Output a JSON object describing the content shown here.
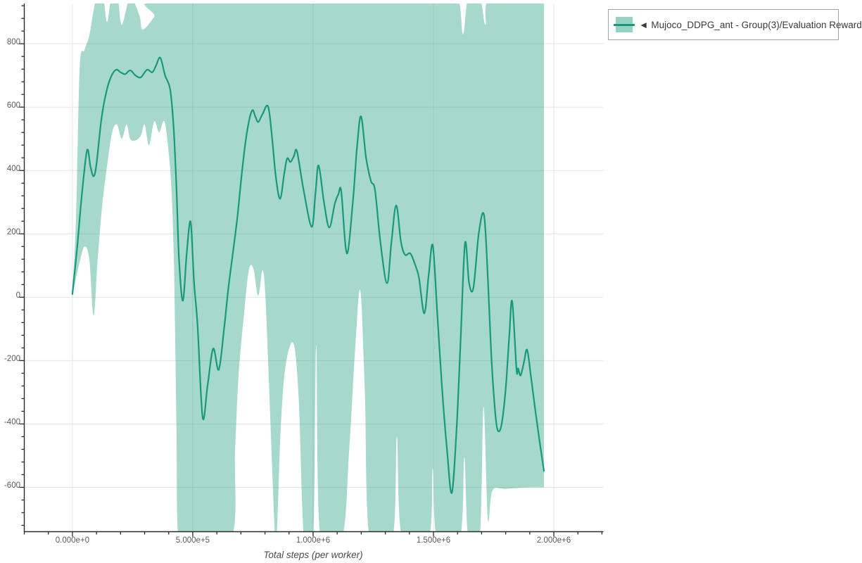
{
  "colors": {
    "line": "#17997a",
    "band_fill": "#17997a",
    "band_opacity": 0.38,
    "grid": "#e4e4e4",
    "axis": "#2b2b2b",
    "tick_text": "#5a5a5a"
  },
  "legend": {
    "collapse_icon": "◄",
    "label": "Mujoco_DDPG_ant - Group(3)/Evaluation Reward"
  },
  "x_axis": {
    "label": "Total steps (per worker)",
    "tick_labels": [
      "0.000e+0",
      "5.000e+5",
      "1.000e+6",
      "1.500e+6",
      "2.000e+6"
    ],
    "tick_values": [
      0,
      500000,
      1000000,
      1500000,
      2000000
    ],
    "minor_step": 100000,
    "range": [
      -200000,
      2206000
    ]
  },
  "y_axis": {
    "tick_labels": [
      "800",
      "600",
      "400",
      "200",
      "0",
      "-200",
      "-400",
      "-600"
    ],
    "tick_values": [
      800,
      600,
      400,
      200,
      0,
      -200,
      -400,
      -600
    ],
    "minor_step": 40,
    "range": [
      -740,
      927
    ]
  },
  "chart_data": {
    "type": "line",
    "title": "",
    "xlabel": "Total steps (per worker)",
    "ylabel": "",
    "legend_position": "top-right",
    "grid": true,
    "xlim": [
      -200000,
      2206000
    ],
    "ylim": [
      -740,
      927
    ],
    "series": [
      {
        "name": "Mujoco_DDPG_ant - Group(3)/Evaluation Reward (mean)",
        "points": [
          [
            0,
            10
          ],
          [
            20,
            160
          ],
          [
            40,
            330
          ],
          [
            61,
            464
          ],
          [
            75,
            412
          ],
          [
            88,
            382
          ],
          [
            100,
            420
          ],
          [
            120,
            560
          ],
          [
            140,
            645
          ],
          [
            160,
            695
          ],
          [
            181,
            718
          ],
          [
            200,
            710
          ],
          [
            219,
            704
          ],
          [
            240,
            716
          ],
          [
            262,
            700
          ],
          [
            284,
            694
          ],
          [
            310,
            718
          ],
          [
            332,
            710
          ],
          [
            348,
            732
          ],
          [
            365,
            756
          ],
          [
            385,
            700
          ],
          [
            406,
            656
          ],
          [
            420,
            540
          ],
          [
            432,
            350
          ],
          [
            443,
            120
          ],
          [
            459,
            -11
          ],
          [
            475,
            140
          ],
          [
            491,
            238
          ],
          [
            505,
            50
          ],
          [
            520,
            -90
          ],
          [
            541,
            -380
          ],
          [
            562,
            -275
          ],
          [
            585,
            -162
          ],
          [
            608,
            -229
          ],
          [
            630,
            -100
          ],
          [
            648,
            30
          ],
          [
            665,
            130
          ],
          [
            685,
            250
          ],
          [
            705,
            400
          ],
          [
            725,
            520
          ],
          [
            746,
            589
          ],
          [
            760,
            570
          ],
          [
            772,
            553
          ],
          [
            790,
            578
          ],
          [
            813,
            602
          ],
          [
            830,
            500
          ],
          [
            845,
            380
          ],
          [
            863,
            311
          ],
          [
            880,
            390
          ],
          [
            892,
            438
          ],
          [
            906,
            427
          ],
          [
            920,
            445
          ],
          [
            933,
            460
          ],
          [
            960,
            340
          ],
          [
            994,
            222
          ],
          [
            1010,
            330
          ],
          [
            1023,
            416
          ],
          [
            1045,
            300
          ],
          [
            1067,
            220
          ],
          [
            1090,
            295
          ],
          [
            1105,
            325
          ],
          [
            1117,
            333
          ],
          [
            1140,
            138
          ],
          [
            1165,
            300
          ],
          [
            1182,
            470
          ],
          [
            1199,
            571
          ],
          [
            1220,
            440
          ],
          [
            1240,
            367
          ],
          [
            1257,
            338
          ],
          [
            1280,
            170
          ],
          [
            1307,
            44
          ],
          [
            1325,
            170
          ],
          [
            1345,
            290
          ],
          [
            1365,
            175
          ],
          [
            1382,
            134
          ],
          [
            1404,
            138
          ],
          [
            1425,
            100
          ],
          [
            1440,
            60
          ],
          [
            1462,
            -51
          ],
          [
            1480,
            70
          ],
          [
            1497,
            164
          ],
          [
            1515,
            -40
          ],
          [
            1535,
            -280
          ],
          [
            1556,
            -480
          ],
          [
            1576,
            -618
          ],
          [
            1595,
            -430
          ],
          [
            1612,
            -150
          ],
          [
            1631,
            170
          ],
          [
            1648,
            45
          ],
          [
            1666,
            30
          ],
          [
            1688,
            200
          ],
          [
            1710,
            260
          ],
          [
            1726,
            60
          ],
          [
            1740,
            -180
          ],
          [
            1755,
            -350
          ],
          [
            1766,
            -418
          ],
          [
            1782,
            -405
          ],
          [
            1800,
            -290
          ],
          [
            1815,
            -120
          ],
          [
            1827,
            -13
          ],
          [
            1845,
            -228
          ],
          [
            1852,
            -225
          ],
          [
            1862,
            -247
          ],
          [
            1876,
            -205
          ],
          [
            1889,
            -166
          ],
          [
            1905,
            -250
          ],
          [
            1920,
            -340
          ],
          [
            1940,
            -450
          ],
          [
            1959,
            -548
          ]
        ],
        "x_unit_multiplier": 1000
      },
      {
        "name": "band_lower",
        "points": [
          [
            0,
            0
          ],
          [
            15,
            60
          ],
          [
            30,
            110
          ],
          [
            50,
            160
          ],
          [
            70,
            120
          ],
          [
            88,
            -58
          ],
          [
            105,
            120
          ],
          [
            125,
            300
          ],
          [
            145,
            420
          ],
          [
            165,
            520
          ],
          [
            185,
            545
          ],
          [
            205,
            500
          ],
          [
            225,
            545
          ],
          [
            240,
            500
          ],
          [
            262,
            495
          ],
          [
            284,
            510
          ],
          [
            300,
            545
          ],
          [
            318,
            480
          ],
          [
            340,
            555
          ],
          [
            360,
            520
          ],
          [
            382,
            555
          ],
          [
            400,
            456
          ],
          [
            412,
            330
          ],
          [
            422,
            100
          ],
          [
            432,
            -400
          ],
          [
            440,
            -760
          ],
          [
            483,
            -760
          ],
          [
            488,
            -550
          ],
          [
            493,
            -760
          ],
          [
            660,
            -760
          ],
          [
            676,
            -480
          ],
          [
            690,
            -250
          ],
          [
            712,
            -60
          ],
          [
            733,
            85
          ],
          [
            752,
            90
          ],
          [
            772,
            5
          ],
          [
            790,
            85
          ],
          [
            802,
            0
          ],
          [
            818,
            -300
          ],
          [
            838,
            -700
          ],
          [
            845,
            -760
          ],
          [
            852,
            -700
          ],
          [
            865,
            -420
          ],
          [
            885,
            -220
          ],
          [
            918,
            -145
          ],
          [
            940,
            -320
          ],
          [
            962,
            -760
          ],
          [
            1000,
            -760
          ],
          [
            1013,
            -150
          ],
          [
            1030,
            -760
          ],
          [
            1120,
            -760
          ],
          [
            1150,
            -480
          ],
          [
            1175,
            -160
          ],
          [
            1196,
            22
          ],
          [
            1215,
            -300
          ],
          [
            1235,
            -760
          ],
          [
            1330,
            -760
          ],
          [
            1348,
            -440
          ],
          [
            1370,
            -760
          ],
          [
            1480,
            -760
          ],
          [
            1497,
            -540
          ],
          [
            1515,
            -760
          ],
          [
            1610,
            -760
          ],
          [
            1628,
            -505
          ],
          [
            1645,
            -760
          ],
          [
            1692,
            -760
          ],
          [
            1708,
            -345
          ],
          [
            1726,
            -700
          ],
          [
            1745,
            -610
          ],
          [
            1800,
            -605
          ],
          [
            1900,
            -600
          ],
          [
            1959,
            -600
          ]
        ],
        "x_unit_multiplier": 1000
      },
      {
        "name": "band_upper",
        "points": [
          [
            0,
            25
          ],
          [
            15,
            250
          ],
          [
            30,
            722
          ],
          [
            50,
            780
          ],
          [
            70,
            825
          ],
          [
            88,
            905
          ],
          [
            100,
            940
          ],
          [
            128,
            940
          ],
          [
            144,
            868
          ],
          [
            162,
            945
          ],
          [
            188,
            945
          ],
          [
            205,
            860
          ],
          [
            240,
            945
          ],
          [
            278,
            890
          ],
          [
            292,
            845
          ],
          [
            340,
            885
          ],
          [
            395,
            950
          ],
          [
            1480,
            950
          ],
          [
            1500,
            855
          ],
          [
            1522,
            950
          ],
          [
            1600,
            950
          ],
          [
            1623,
            830
          ],
          [
            1645,
            950
          ],
          [
            1692,
            950
          ],
          [
            1716,
            860
          ],
          [
            1740,
            950
          ],
          [
            1959,
            950
          ]
        ],
        "x_unit_multiplier": 1000
      }
    ]
  }
}
